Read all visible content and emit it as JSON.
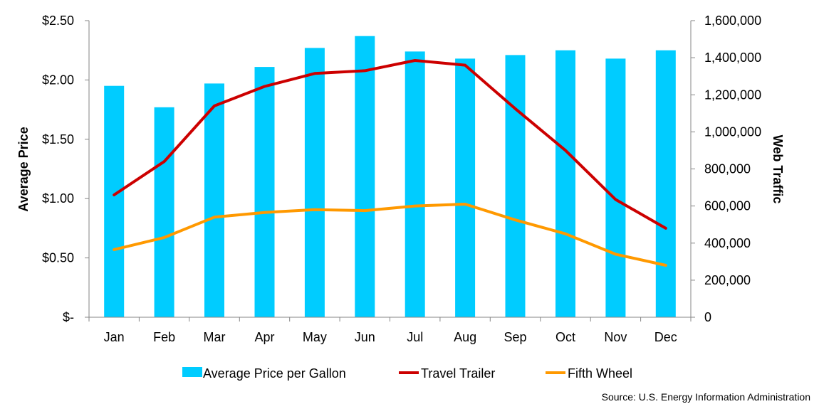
{
  "chart_data": {
    "type": "bar",
    "categories": [
      "Jan",
      "Feb",
      "Mar",
      "Apr",
      "May",
      "Jun",
      "Jul",
      "Aug",
      "Sep",
      "Oct",
      "Nov",
      "Dec"
    ],
    "series": [
      {
        "name": "Average Price per Gallon",
        "type": "bar",
        "axis": "left",
        "color": "#00CCFF",
        "values": [
          1.95,
          1.77,
          1.97,
          2.11,
          2.27,
          2.37,
          2.24,
          2.18,
          2.21,
          2.25,
          2.18,
          2.25
        ]
      },
      {
        "name": "Travel Trailer",
        "type": "line",
        "axis": "right",
        "color": "#CC0000",
        "values": [
          660000,
          840000,
          1140000,
          1245000,
          1315000,
          1330000,
          1385000,
          1360000,
          1125000,
          900000,
          635000,
          480000
        ]
      },
      {
        "name": "Fifth Wheel",
        "type": "line",
        "axis": "right",
        "color": "#FF9900",
        "values": [
          365000,
          430000,
          540000,
          565000,
          580000,
          575000,
          600000,
          610000,
          525000,
          450000,
          340000,
          280000
        ]
      }
    ],
    "ylabel": "Average Price",
    "y2label": "Web Traffic",
    "ylim": [
      0,
      2.5
    ],
    "y2lim": [
      0,
      1600000
    ],
    "yticks": [
      "$-",
      "$0.50",
      "$1.00",
      "$1.50",
      "$2.00",
      "$2.50"
    ],
    "y2ticks": [
      "0",
      "200,000",
      "400,000",
      "600,000",
      "800,000",
      "1,000,000",
      "1,200,000",
      "1,400,000",
      "1,600,000"
    ],
    "grid": false,
    "legend": "bottom",
    "source": "Source: U.S. Energy Information Administration"
  }
}
